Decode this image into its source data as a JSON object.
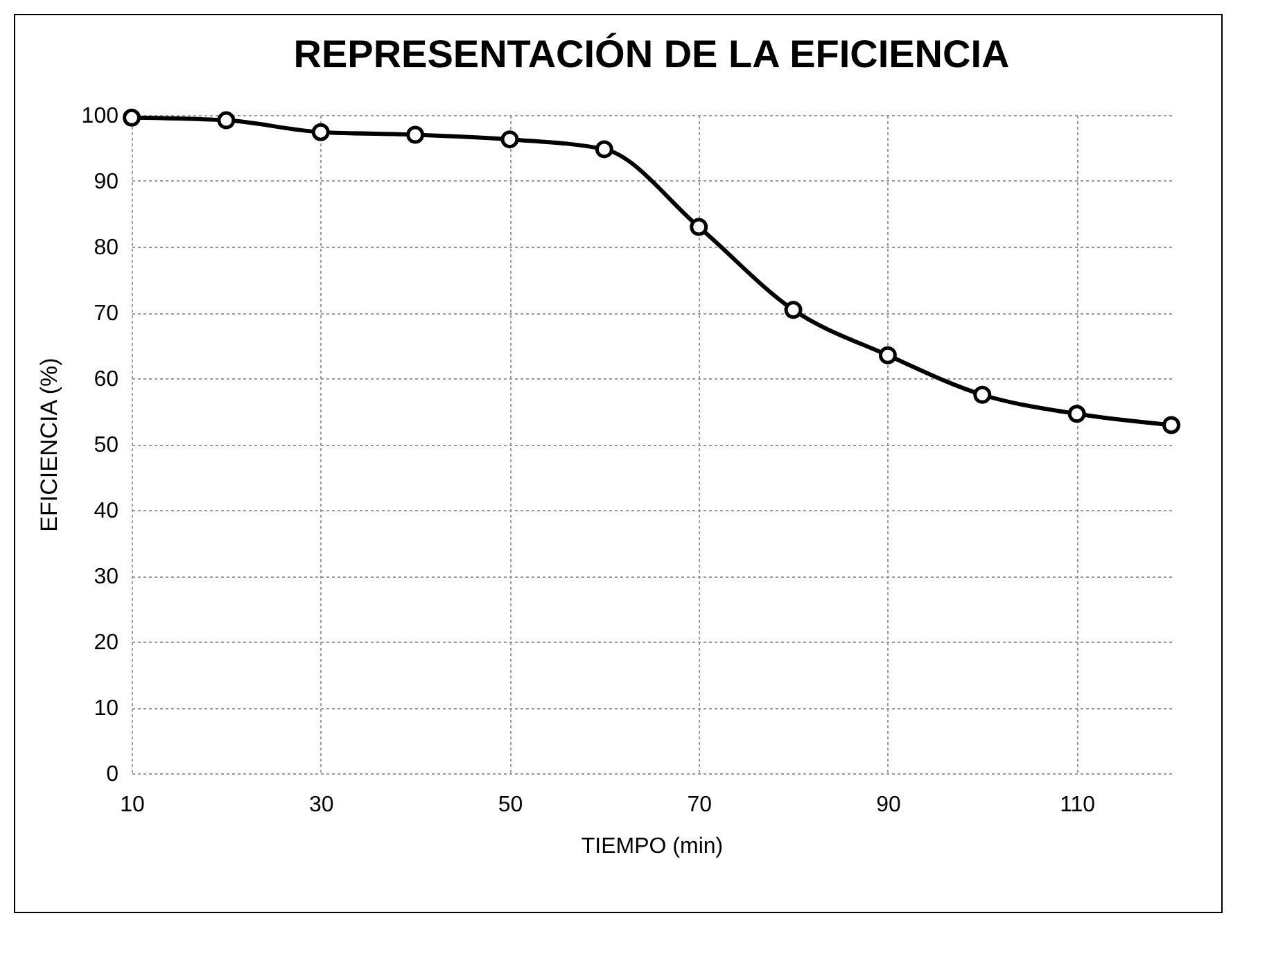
{
  "chart_data": {
    "type": "line",
    "title": "REPRESENTACIÓN DE LA EFICIENCIA",
    "xlabel": "TIEMPO (min)",
    "ylabel": "EFICIENCIA (%)",
    "x": [
      10,
      20,
      30,
      40,
      50,
      60,
      70,
      80,
      90,
      100,
      110,
      120
    ],
    "series": [
      {
        "color": "#000000",
        "values": [
          99.6,
          99.2,
          97.4,
          97,
          96.3,
          94.8,
          83,
          70.4,
          63.5,
          57.5,
          54.6,
          52.9
        ]
      }
    ],
    "xlim": [
      10,
      120
    ],
    "xticks": [
      10,
      30,
      50,
      70,
      90,
      110
    ],
    "ylim": [
      0,
      100
    ],
    "yticks": [
      0,
      10,
      20,
      30,
      40,
      50,
      60,
      70,
      80,
      90,
      100
    ],
    "grid": true,
    "marker": "circle",
    "line_style": "solid"
  }
}
